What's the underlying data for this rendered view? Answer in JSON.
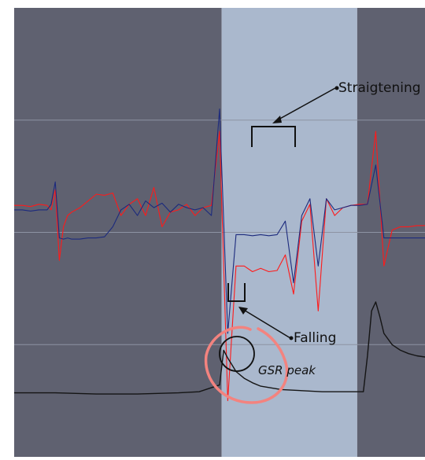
{
  "colors": {
    "background": "#ffffff",
    "dark_region": "#5f6170",
    "highlight_region": "#aab8cd",
    "gridline": "#8d93a3",
    "series_red": "#ff1a1a",
    "series_blue": "#1c2a7d",
    "series_gsr": "#141414",
    "marker_circle": "#f3837f",
    "annotation": "#111111"
  },
  "chart_data": {
    "type": "line",
    "title": "",
    "xlabel": "",
    "ylabel": "",
    "series": [
      {
        "color": "#ff1a1a",
        "x": [
          0,
          2,
          4,
          6,
          8,
          9,
          10,
          11,
          12,
          13,
          14,
          16,
          18,
          20,
          22,
          24,
          26,
          28,
          30,
          32,
          34,
          36,
          38,
          40,
          42,
          44,
          46,
          48,
          50,
          52,
          54,
          56,
          58,
          60,
          62,
          64,
          66,
          68,
          70,
          72,
          74,
          76,
          78,
          80,
          82,
          84,
          86,
          88,
          90,
          92,
          94,
          96,
          98,
          100
        ],
        "y": [
          0.24,
          0.24,
          0.23,
          0.25,
          0.24,
          0.2,
          0.38,
          -0.25,
          0.05,
          0.15,
          0.18,
          0.22,
          0.28,
          0.34,
          0.33,
          0.35,
          0.15,
          0.25,
          0.3,
          0.15,
          0.4,
          0.05,
          0.18,
          0.2,
          0.25,
          0.15,
          0.22,
          0.24,
          0.9,
          -1.5,
          -0.3,
          -0.3,
          -0.35,
          -0.32,
          -0.35,
          -0.34,
          -0.2,
          -0.55,
          0.1,
          0.25,
          -0.7,
          0.3,
          0.15,
          0.22,
          0.24,
          0.25,
          0.25,
          0.9,
          -0.3,
          0.02,
          0.05,
          0.05,
          0.06,
          0.06
        ]
      },
      {
        "color": "#1c2a7d",
        "x": [
          0,
          2,
          4,
          6,
          8,
          9,
          10,
          11,
          12,
          13,
          14,
          16,
          18,
          20,
          22,
          24,
          26,
          28,
          30,
          32,
          34,
          36,
          38,
          40,
          42,
          44,
          46,
          48,
          50,
          52,
          54,
          56,
          58,
          60,
          62,
          64,
          66,
          68,
          70,
          72,
          74,
          76,
          78,
          80,
          82,
          84,
          86,
          88,
          90,
          92,
          94,
          96,
          98,
          100
        ],
        "y": [
          0.2,
          0.2,
          0.19,
          0.2,
          0.2,
          0.25,
          0.45,
          -0.05,
          -0.06,
          -0.05,
          -0.06,
          -0.06,
          -0.05,
          -0.05,
          -0.04,
          0.05,
          0.2,
          0.25,
          0.15,
          0.28,
          0.22,
          0.26,
          0.18,
          0.25,
          0.22,
          0.2,
          0.22,
          0.15,
          1.1,
          -0.9,
          -0.02,
          -0.02,
          -0.03,
          -0.02,
          -0.03,
          -0.02,
          0.1,
          -0.45,
          0.15,
          0.3,
          -0.3,
          0.3,
          0.2,
          0.22,
          0.24,
          0.24,
          0.25,
          0.6,
          -0.05,
          -0.05,
          -0.05,
          -0.05,
          -0.05,
          -0.05
        ]
      },
      {
        "color": "#141414",
        "x": [
          0,
          10,
          20,
          30,
          40,
          45,
          50,
          51,
          52,
          53,
          54,
          56,
          58,
          60,
          65,
          70,
          75,
          80,
          85,
          86,
          87,
          88,
          89,
          90,
          92,
          94,
          96,
          98,
          100
        ],
        "y": [
          -1.43,
          -1.43,
          -1.44,
          -1.44,
          -1.43,
          -1.42,
          -1.36,
          -1.05,
          -1.12,
          -1.18,
          -1.24,
          -1.3,
          -1.34,
          -1.37,
          -1.4,
          -1.41,
          -1.42,
          -1.42,
          -1.42,
          -1.1,
          -0.7,
          -0.62,
          -0.75,
          -0.9,
          -1.0,
          -1.05,
          -1.08,
          -1.1,
          -1.11
        ]
      }
    ],
    "xlim": [
      0,
      100
    ],
    "ylim": [
      -2,
      2
    ],
    "grid": true,
    "shaded_regions": [
      {
        "x_from": 0,
        "x_to": 50.5,
        "style": "dark"
      },
      {
        "x_from": 50.5,
        "x_to": 83.5,
        "style": "highlight"
      },
      {
        "x_from": 83.5,
        "x_to": 100,
        "style": "dark"
      }
    ],
    "annotations": [
      {
        "text": "Straigtening",
        "style": "normal"
      },
      {
        "text": "Falling",
        "style": "normal"
      },
      {
        "text": "GSR peak",
        "style": "italic"
      }
    ]
  }
}
